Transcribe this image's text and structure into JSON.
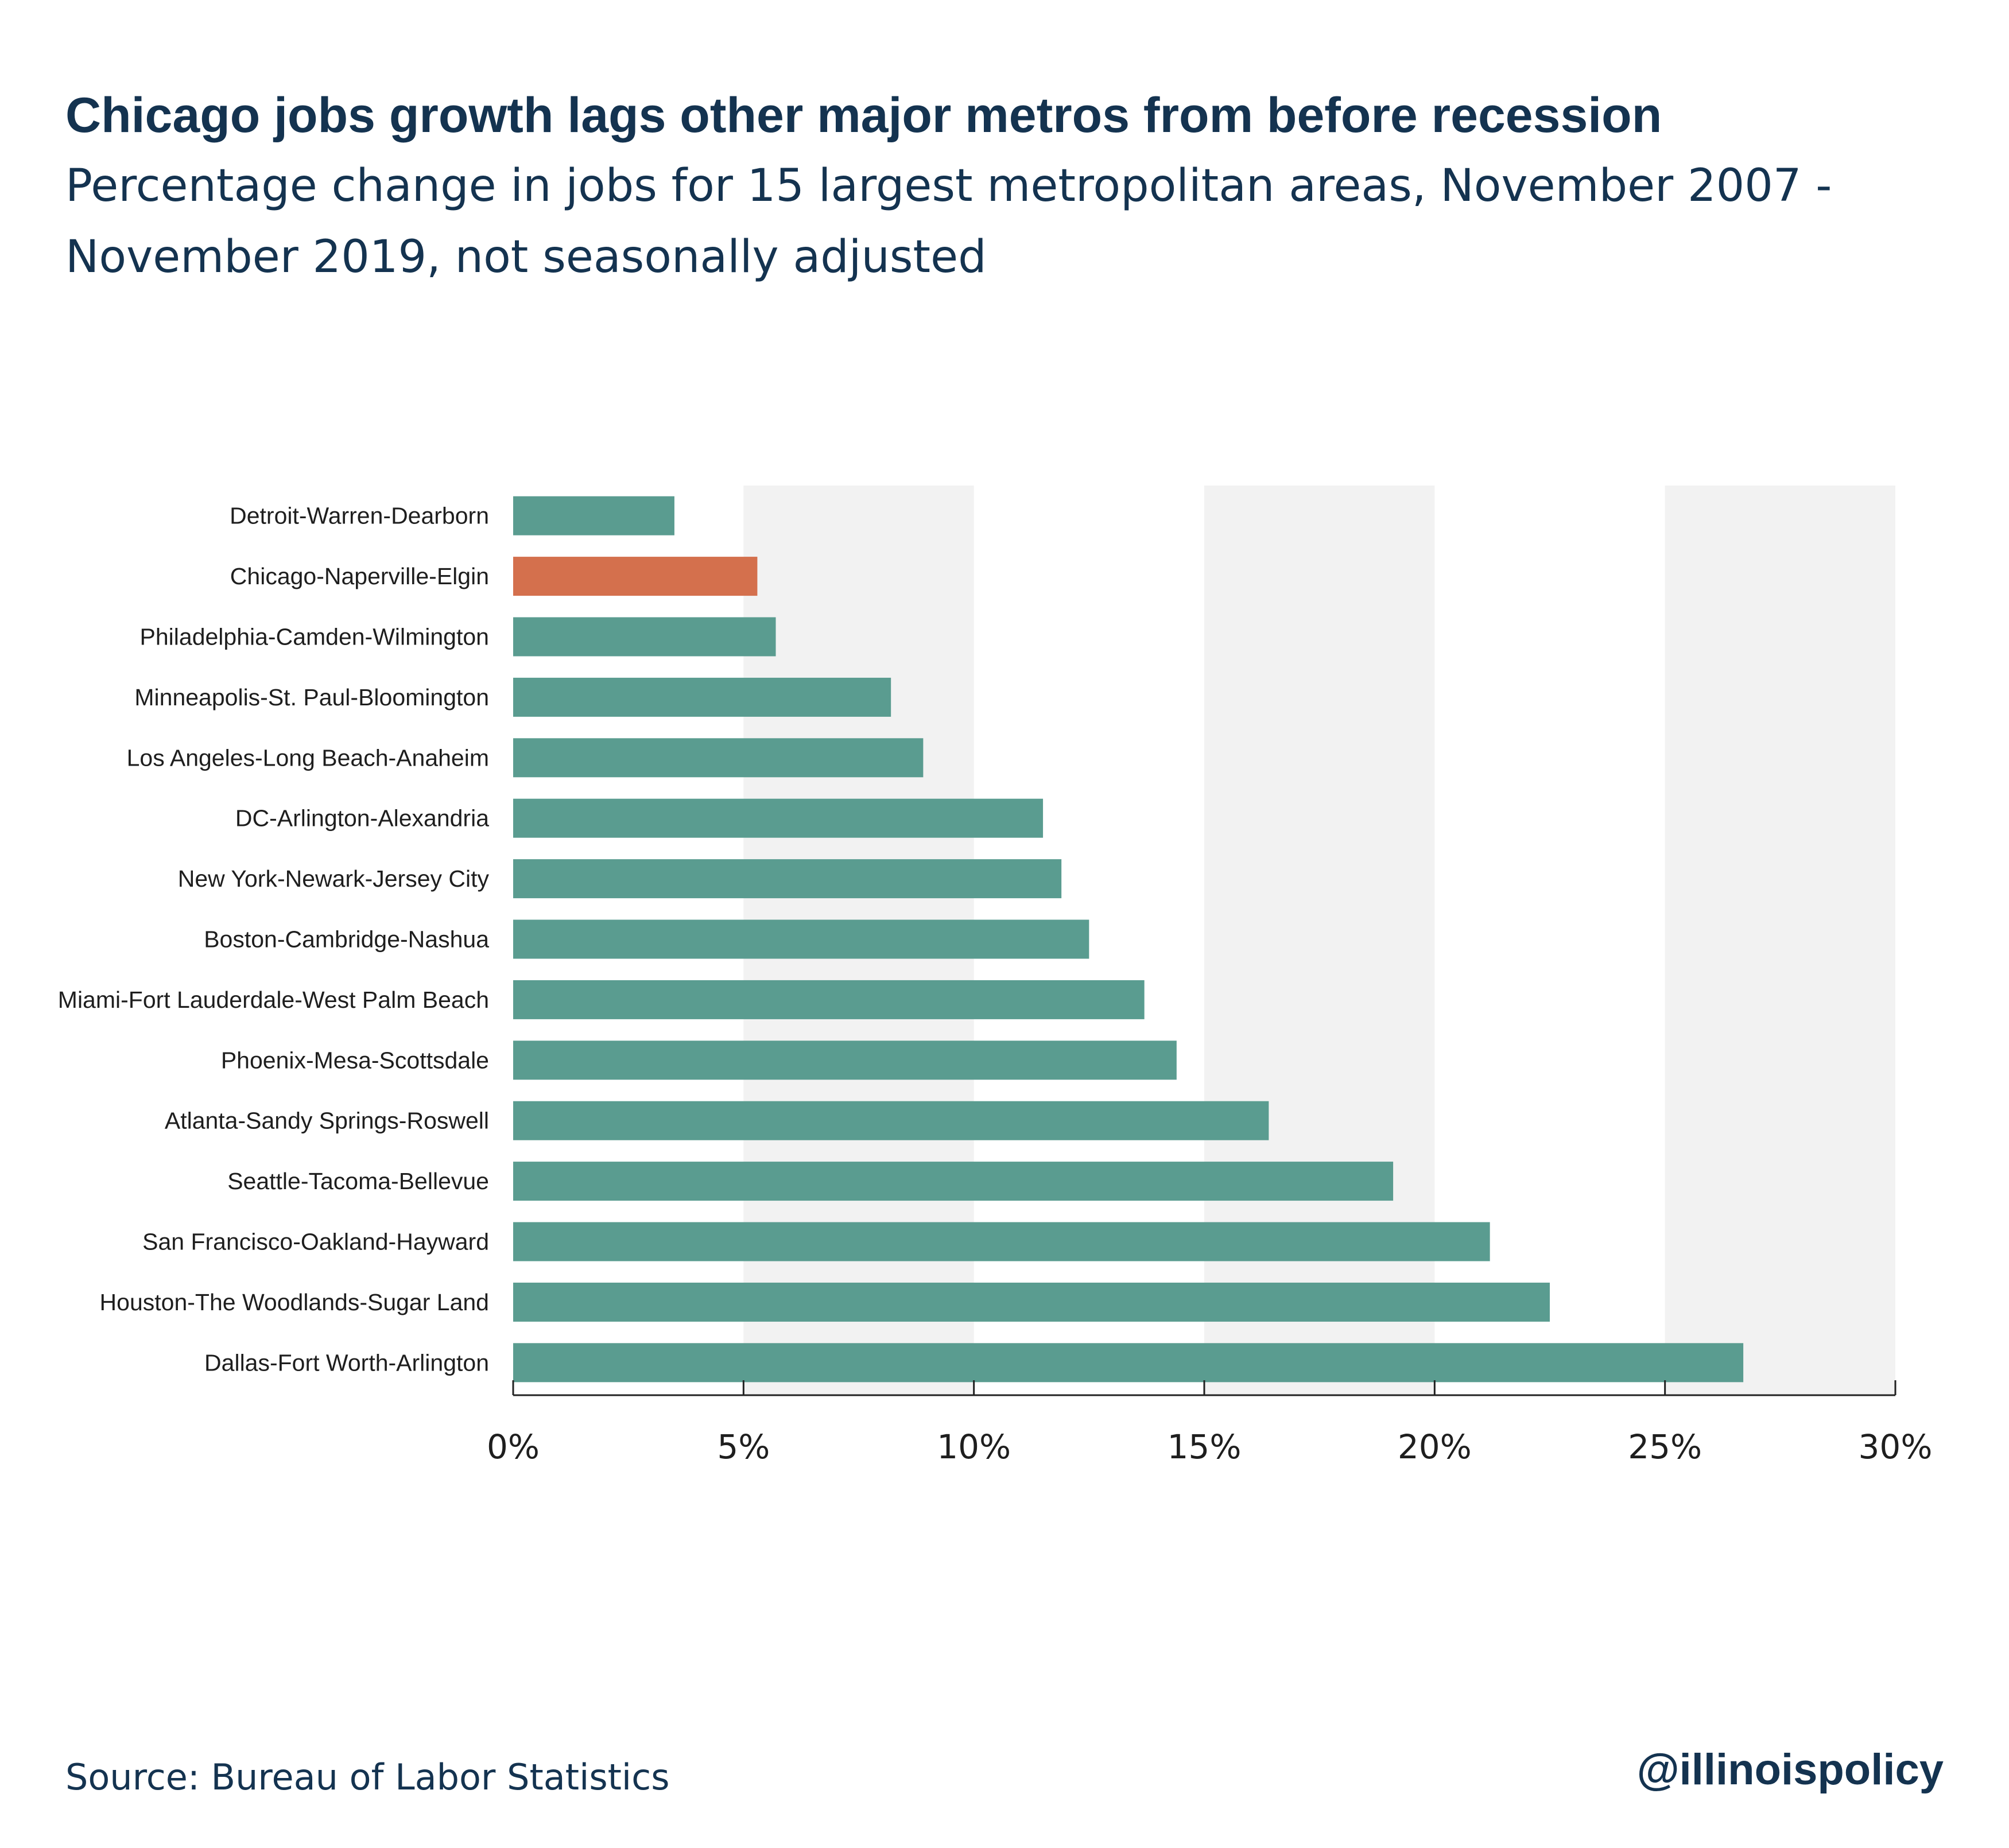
{
  "header": {
    "title": "Chicago jobs growth lags other major metros from before recession",
    "subtitle": "Percentage change in jobs for 15 largest metropolitan areas, November 2007 - November 2019, not seasonally adjusted"
  },
  "footer": {
    "source": "Source: Bureau of Labor Statistics",
    "handle": "@illinoispolicy"
  },
  "colors": {
    "bar": "#5a9c90",
    "highlight": "#d4704d",
    "band": "#f2f2f2",
    "text": "#143350"
  },
  "chart_data": {
    "type": "bar",
    "orientation": "horizontal",
    "title": "Chicago jobs growth lags other major metros from before recession",
    "subtitle": "Percentage change in jobs for 15 largest metropolitan areas, November 2007 - November 2019, not seasonally adjusted",
    "xlabel": "",
    "ylabel": "",
    "xlim": [
      0,
      30
    ],
    "xticks": [
      0,
      5,
      10,
      15,
      20,
      25,
      30
    ],
    "xtick_labels": [
      "0%",
      "5%",
      "10%",
      "15%",
      "20%",
      "25%",
      "30%"
    ],
    "grid": "alternating shaded bands",
    "legend": "none",
    "highlight_category": "Chicago-Naperville-Elgin",
    "categories": [
      "Detroit-Warren-Dearborn",
      "Chicago-Naperville-Elgin",
      "Philadelphia-Camden-Wilmington",
      "Minneapolis-St. Paul-Bloomington",
      "Los Angeles-Long Beach-Anaheim",
      "DC-Arlington-Alexandria",
      "New York-Newark-Jersey City",
      "Boston-Cambridge-Nashua",
      "Miami-Fort Lauderdale-West Palm Beach",
      "Phoenix-Mesa-Scottsdale",
      "Atlanta-Sandy Springs-Roswell",
      "Seattle-Tacoma-Bellevue",
      "San Francisco-Oakland-Hayward",
      "Houston-The Woodlands-Sugar Land",
      "Dallas-Fort Worth-Arlington"
    ],
    "values": [
      3.5,
      5.3,
      5.7,
      8.2,
      8.9,
      11.5,
      11.9,
      12.5,
      13.7,
      14.4,
      16.4,
      19.1,
      21.2,
      22.5,
      26.7
    ]
  }
}
